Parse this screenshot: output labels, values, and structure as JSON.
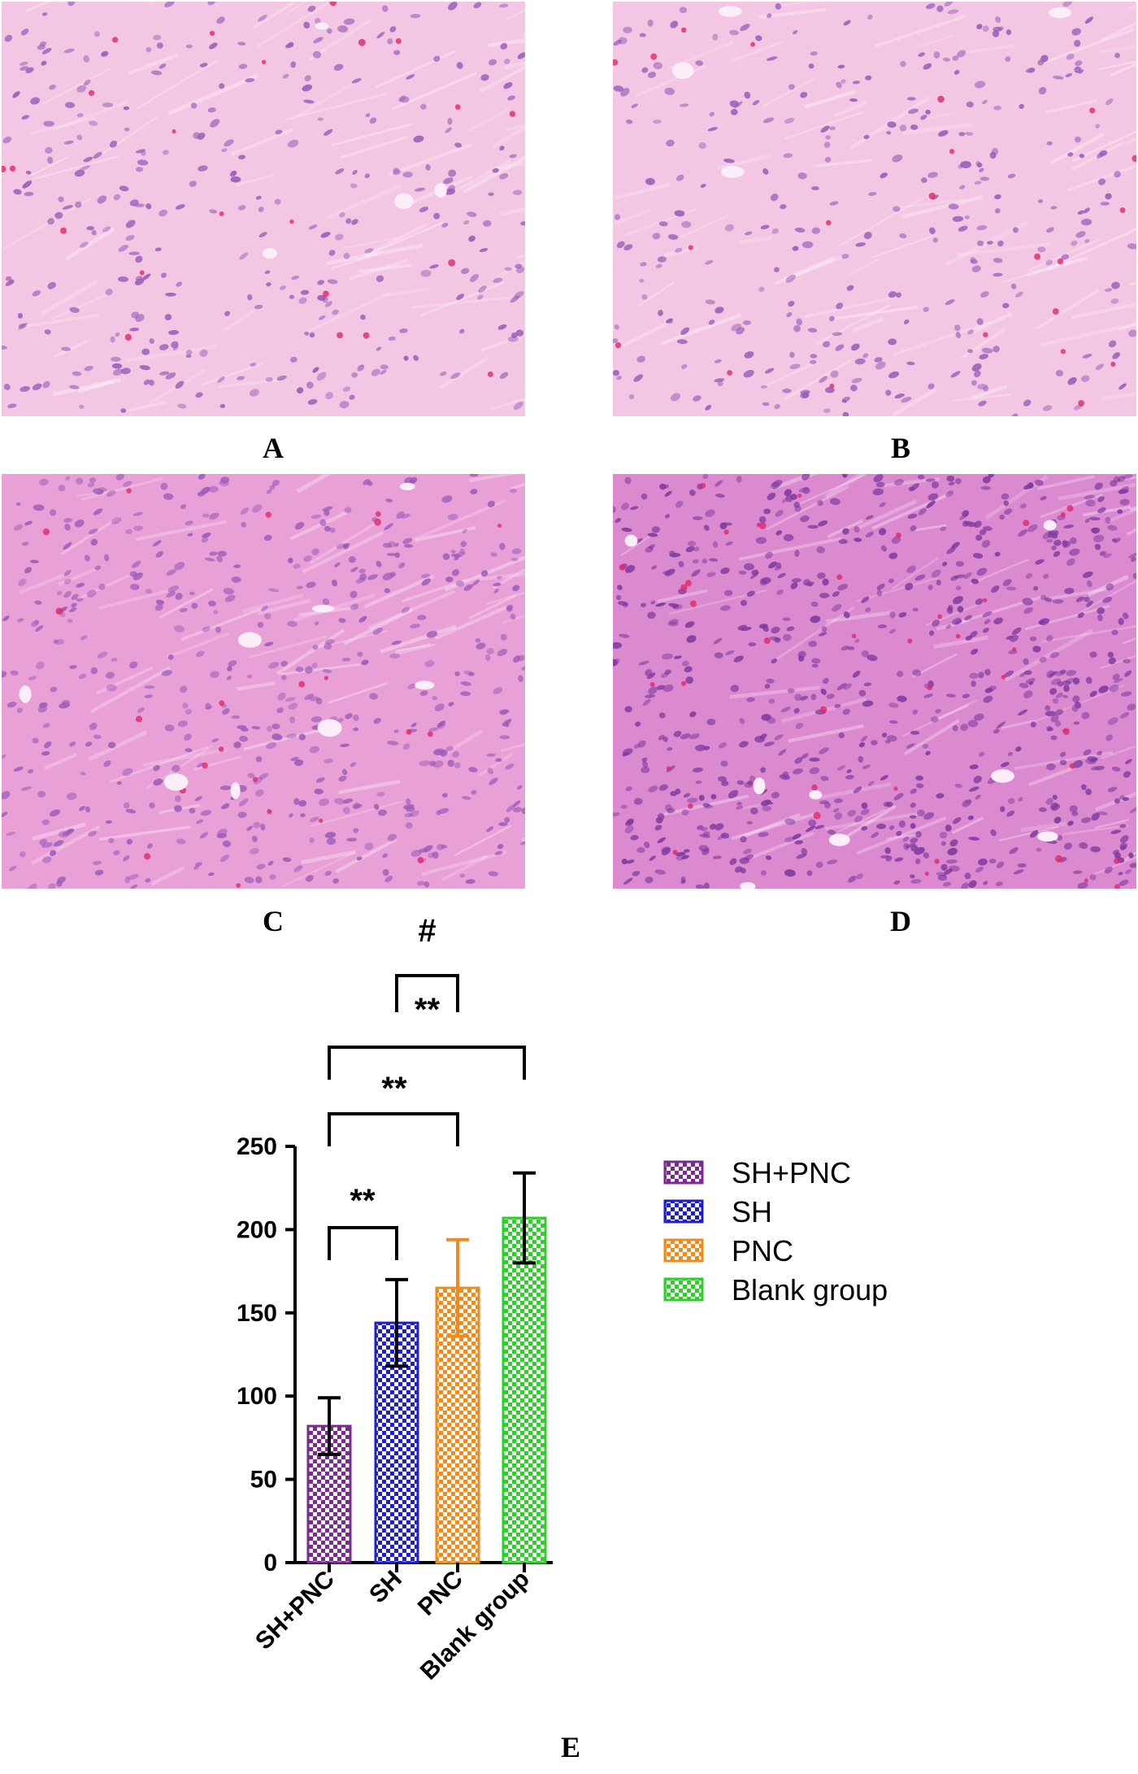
{
  "panels": [
    {
      "letter": "A",
      "tone": "light"
    },
    {
      "letter": "B",
      "tone": "light"
    },
    {
      "letter": "C",
      "tone": "medium"
    },
    {
      "letter": "D",
      "tone": "dense"
    }
  ],
  "colors": {
    "tissue_light": "#f3c6e3",
    "tissue_medium": "#e9a0d6",
    "tissue_dense": "#dc8ad0",
    "nucleus": "#9a5bb8",
    "nucleus_dense": "#7d3a9e"
  },
  "figure_label": "E",
  "chart_data": {
    "type": "bar",
    "categories": [
      "SH+PNC",
      "SH",
      "PNC",
      "Blank group"
    ],
    "values": [
      82,
      144,
      165,
      207
    ],
    "errors": [
      17,
      26,
      29,
      27
    ],
    "colors": [
      "#7b2a8f",
      "#1f1fc7",
      "#f28a1b",
      "#2fcf2a"
    ],
    "ylim": [
      0,
      250
    ],
    "yticks": [
      0,
      50,
      100,
      150,
      200,
      250
    ],
    "legend": [
      "SH+PNC",
      "SH",
      "PNC",
      "Blank group"
    ],
    "legend_position": "right",
    "pattern": "checkerboard",
    "significance": [
      {
        "from": 0,
        "to": 1,
        "label": "**"
      },
      {
        "from": 0,
        "to": 2,
        "label": "**"
      },
      {
        "from": 0,
        "to": 3,
        "label": "**"
      },
      {
        "from": 1,
        "to": 2,
        "label": "#"
      }
    ],
    "title": "",
    "xlabel": "",
    "ylabel": ""
  }
}
